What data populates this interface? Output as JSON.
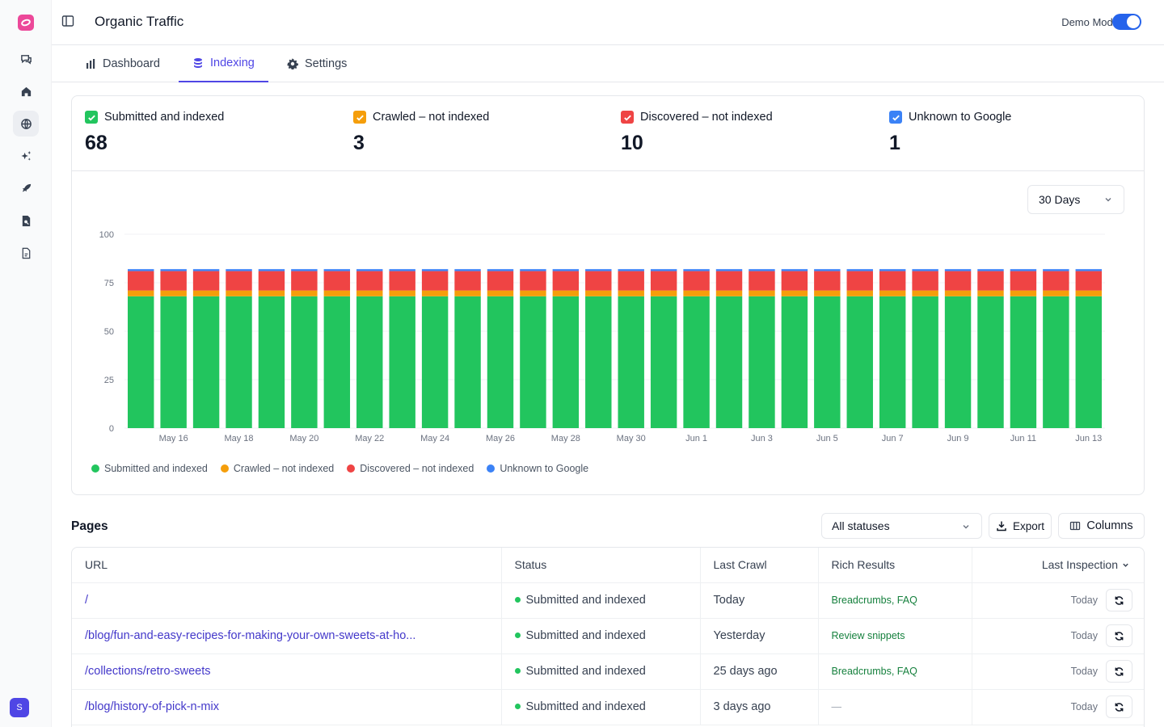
{
  "topbar": {
    "title": "Organic Traffic",
    "demo_mode_label": "Demo Mode",
    "demo_mode_on": true
  },
  "tabs": [
    {
      "label": "Dashboard",
      "icon": "bar-chart-icon",
      "active": false
    },
    {
      "label": "Indexing",
      "icon": "database-icon",
      "active": true
    },
    {
      "label": "Settings",
      "icon": "gear-icon",
      "active": false
    }
  ],
  "rail": {
    "icons": [
      "chat-icon",
      "home-icon",
      "globe-icon",
      "sparkles-icon",
      "rocket-icon",
      "search-document-icon",
      "document-icon"
    ],
    "active": "globe-icon",
    "avatar_initial": "S"
  },
  "stats": [
    {
      "label": "Submitted and indexed",
      "value": "68",
      "color": "#22c55e"
    },
    {
      "label": "Crawled – not indexed",
      "value": "3",
      "color": "#f59e0b"
    },
    {
      "label": "Discovered – not indexed",
      "value": "10",
      "color": "#ef4444"
    },
    {
      "label": "Unknown to Google",
      "value": "1",
      "color": "#3b82f6"
    }
  ],
  "range_select": {
    "value": "30 Days"
  },
  "chart_data": {
    "type": "bar",
    "stacked": true,
    "ylim": [
      0,
      100
    ],
    "y_ticks": [
      0,
      25,
      50,
      75,
      100
    ],
    "grid": true,
    "categories": [
      "May 15",
      "May 16",
      "May 17",
      "May 18",
      "May 19",
      "May 20",
      "May 21",
      "May 22",
      "May 23",
      "May 24",
      "May 25",
      "May 26",
      "May 27",
      "May 28",
      "May 29",
      "May 30",
      "May 31",
      "Jun 1",
      "Jun 2",
      "Jun 3",
      "Jun 4",
      "Jun 5",
      "Jun 6",
      "Jun 7",
      "Jun 8",
      "Jun 9",
      "Jun 10",
      "Jun 11",
      "Jun 12",
      "Jun 13"
    ],
    "x_tick_labels": [
      "May 16",
      "May 18",
      "May 20",
      "May 22",
      "May 24",
      "May 26",
      "May 28",
      "May 30",
      "Jun 1",
      "Jun 3",
      "Jun 5",
      "Jun 7",
      "Jun 9",
      "Jun 11",
      "Jun 13"
    ],
    "series": [
      {
        "name": "Submitted and indexed",
        "color": "#22c55e",
        "values": [
          68,
          68,
          68,
          68,
          68,
          68,
          68,
          68,
          68,
          68,
          68,
          68,
          68,
          68,
          68,
          68,
          68,
          68,
          68,
          68,
          68,
          68,
          68,
          68,
          68,
          68,
          68,
          68,
          68,
          68
        ]
      },
      {
        "name": "Crawled – not indexed",
        "color": "#f59e0b",
        "values": [
          3,
          3,
          3,
          3,
          3,
          3,
          3,
          3,
          3,
          3,
          3,
          3,
          3,
          3,
          3,
          3,
          3,
          3,
          3,
          3,
          3,
          3,
          3,
          3,
          3,
          3,
          3,
          3,
          3,
          3
        ]
      },
      {
        "name": "Discovered – not indexed",
        "color": "#ef4444",
        "values": [
          10,
          10,
          10,
          10,
          10,
          10,
          10,
          10,
          10,
          10,
          10,
          10,
          10,
          10,
          10,
          10,
          10,
          10,
          10,
          10,
          10,
          10,
          10,
          10,
          10,
          10,
          10,
          10,
          10,
          10
        ]
      },
      {
        "name": "Unknown to Google",
        "color": "#3b82f6",
        "values": [
          1,
          1,
          1,
          1,
          1,
          1,
          1,
          1,
          1,
          1,
          1,
          1,
          1,
          1,
          1,
          1,
          1,
          1,
          1,
          1,
          1,
          1,
          1,
          1,
          1,
          1,
          1,
          1,
          1,
          1
        ]
      }
    ],
    "legend_position": "bottom-left"
  },
  "pages": {
    "title": "Pages",
    "status_filter": "All statuses",
    "export_label": "Export",
    "columns_label": "Columns",
    "columns": [
      "URL",
      "Status",
      "Last Crawl",
      "Rich Results",
      "Last Inspection"
    ],
    "rows": [
      {
        "url": "/",
        "status": "Submitted and indexed",
        "last_crawl": "Today",
        "rich_results": "Breadcrumbs, FAQ",
        "last_inspection": "Today"
      },
      {
        "url": "/blog/fun-and-easy-recipes-for-making-your-own-sweets-at-ho...",
        "status": "Submitted and indexed",
        "last_crawl": "Yesterday",
        "rich_results": "Review snippets",
        "last_inspection": "Today"
      },
      {
        "url": "/collections/retro-sweets",
        "status": "Submitted and indexed",
        "last_crawl": "25 days ago",
        "rich_results": "Breadcrumbs, FAQ",
        "last_inspection": "Today"
      },
      {
        "url": "/blog/history-of-pick-n-mix",
        "status": "Submitted and indexed",
        "last_crawl": "3 days ago",
        "rich_results": "—",
        "last_inspection": "Today"
      }
    ]
  }
}
